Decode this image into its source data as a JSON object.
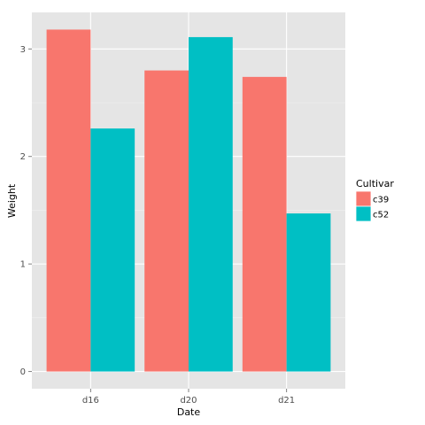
{
  "chart_data": {
    "type": "bar",
    "xlabel": "Date",
    "ylabel": "Weight",
    "categories": [
      "d16",
      "d20",
      "d21"
    ],
    "series": [
      {
        "name": "c39",
        "color": "#F8766D",
        "values": [
          3.18,
          2.8,
          2.74
        ]
      },
      {
        "name": "c52",
        "color": "#00BFC4",
        "values": [
          2.26,
          3.11,
          1.47
        ]
      }
    ],
    "ylim": [
      -0.16,
      3.34
    ],
    "y_ticks": [
      0,
      1,
      2,
      3
    ],
    "y_tick_labels": [
      "0",
      "1",
      "2",
      "3"
    ],
    "grid": true,
    "legend": {
      "title": "Cultivar",
      "placement": "right"
    },
    "panel_background": "#E5E5E5",
    "grid_color": "#FFFFFF"
  }
}
